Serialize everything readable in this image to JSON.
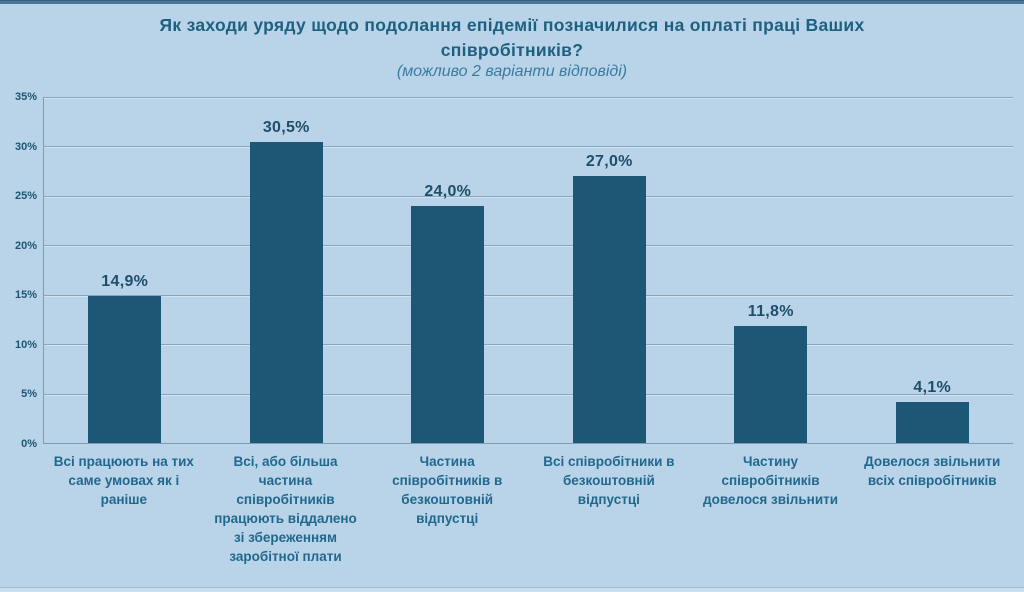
{
  "chart_data": {
    "type": "bar",
    "title": "Як заходи уряду щодо подолання епідемії позначилися на оплаті праці Ваших співробітників?",
    "subtitle": "(можливо 2 варіанти відповіді)",
    "categories": [
      "Всі працюють на тих саме умовах як і раніше",
      "Всі, або більша частина співробітників працюють віддалено зі збереженням заробітної плати",
      "Частина співробітників в безкоштовній відпустці",
      "Всі співробітники в безкоштовній відпустці",
      "Частину співробітників довелося звільнити",
      "Довелося звільнити всіх співробітників"
    ],
    "values": [
      14.9,
      30.5,
      24.0,
      27.0,
      11.8,
      4.1
    ],
    "value_labels": [
      "14,9%",
      "30,5%",
      "24,0%",
      "27,0%",
      "11,8%",
      "4,1%"
    ],
    "y_ticks": [
      "35%",
      "30%",
      "25%",
      "20%",
      "15%",
      "10%",
      "5%",
      "0%"
    ],
    "y_tick_values": [
      35,
      30,
      25,
      20,
      15,
      10,
      5,
      0
    ],
    "ylim": [
      0,
      35
    ],
    "grid": true,
    "legend_position": "none",
    "xlabel": "",
    "ylabel": ""
  },
  "colors": {
    "background": "#b9d4e9",
    "bar": "#1c5876",
    "title": "#1e6080",
    "subtitle": "#3a7ba0",
    "grid": "#8aa6bb",
    "axis": "#7d9cb3",
    "data_label": "#1f4e6a",
    "category_label": "#21688c",
    "tick_label": "#1d5670",
    "strip_top": "#4a7896",
    "strip_top_line": "#35607d",
    "strip_bottom": "#c8deee",
    "strip_bottom_line": "#a3bccd"
  }
}
